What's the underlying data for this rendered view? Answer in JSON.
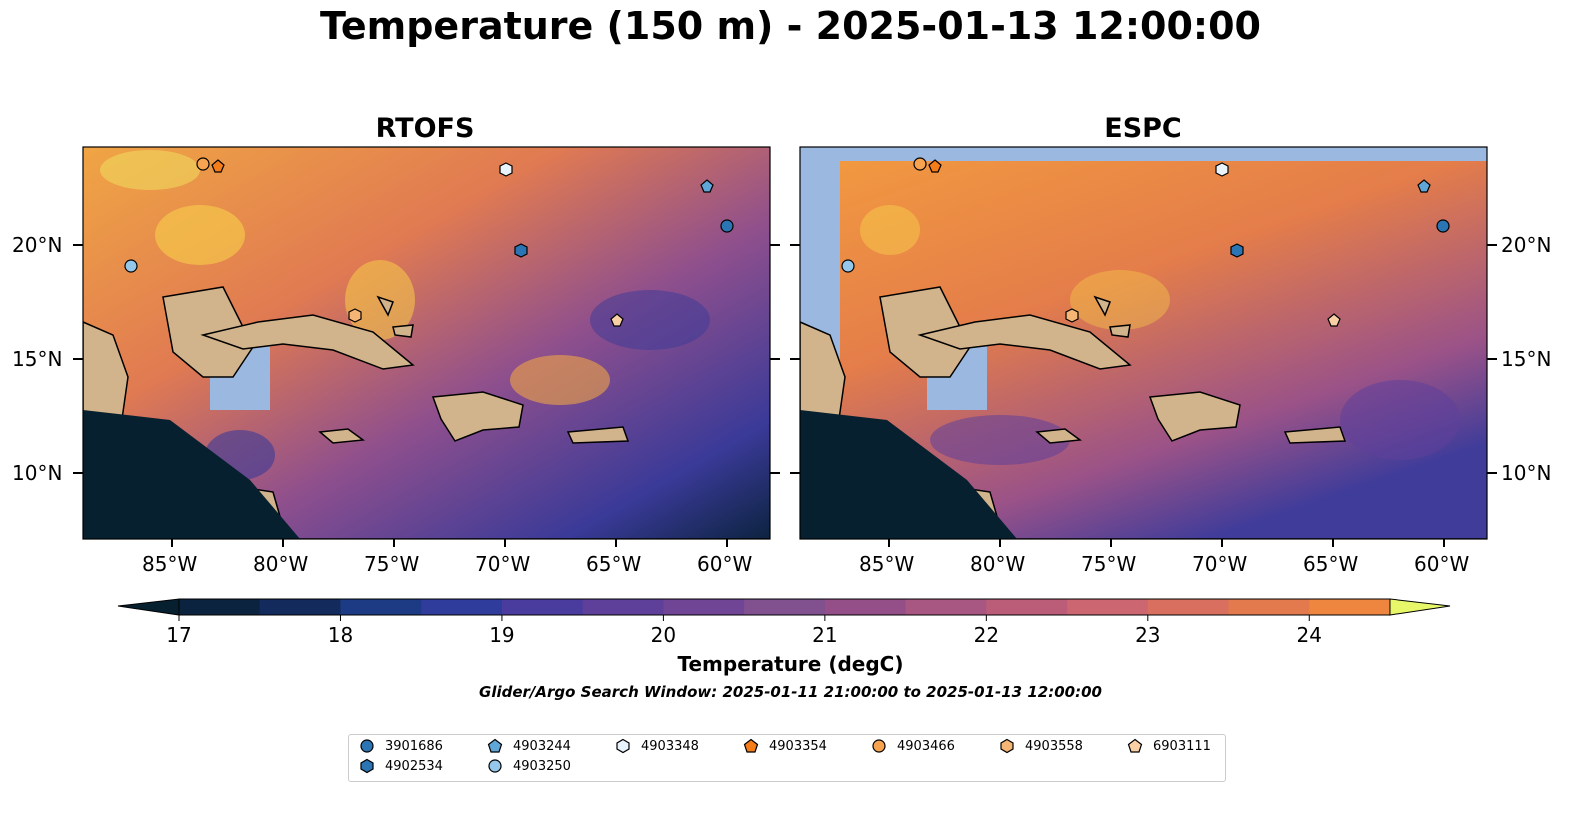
{
  "figure": {
    "title": "Temperature (150 m) - 2025-01-13 12:00:00",
    "panels": [
      {
        "title": "RTOFS"
      },
      {
        "title": "ESPC"
      }
    ],
    "lat_labels": [
      "20°N",
      "15°N",
      "10°N"
    ],
    "lon_labels": [
      "85°W",
      "80°W",
      "75°W",
      "70°W",
      "65°W",
      "60°W"
    ],
    "colorbar": {
      "label": "Temperature (degC)",
      "ticks": [
        "17",
        "18",
        "19",
        "20",
        "21",
        "22",
        "23",
        "24"
      ],
      "range": [
        17,
        24.5
      ],
      "step": 0.5,
      "extend": "both",
      "colors": [
        "#0c2340",
        "#132b5c",
        "#1d3a85",
        "#2f3c9b",
        "#4a3c9e",
        "#5e3f9a",
        "#704595",
        "#81508f",
        "#944f89",
        "#a85682",
        "#bb5d78",
        "#cc6670",
        "#d86f5f",
        "#e37a4d",
        "#ee8640",
        "#f49a3a",
        "#f5ae3a",
        "#f2c247",
        "#f0d95e"
      ],
      "under_color": "#062030",
      "over_color": "#e8f76a"
    },
    "search_window": "Glider/Argo Search Window: 2025-01-11 21:00:00 to 2025-01-13 12:00:00",
    "land_color": "#d2b48c",
    "ocean_fill_color": "#9ab8e0"
  },
  "legend": [
    {
      "id": "3901686",
      "marker": "circle",
      "color": "#2b75b5"
    },
    {
      "id": "4902534",
      "marker": "hexagon",
      "color": "#2b75b5"
    },
    {
      "id": "4903244",
      "marker": "pentagon",
      "color": "#5fa7d8"
    },
    {
      "id": "4903250",
      "marker": "circle",
      "color": "#95c7eb"
    },
    {
      "id": "4903348",
      "marker": "hexagon",
      "color": "#e8f3fc"
    },
    {
      "id": "4903354",
      "marker": "pentagon",
      "color": "#f47c19"
    },
    {
      "id": "4903466",
      "marker": "circle",
      "color": "#f7a34f"
    },
    {
      "id": "4903558",
      "marker": "hexagon",
      "color": "#f5b574"
    },
    {
      "id": "6903111",
      "marker": "pentagon",
      "color": "#f9cfa5"
    }
  ]
}
